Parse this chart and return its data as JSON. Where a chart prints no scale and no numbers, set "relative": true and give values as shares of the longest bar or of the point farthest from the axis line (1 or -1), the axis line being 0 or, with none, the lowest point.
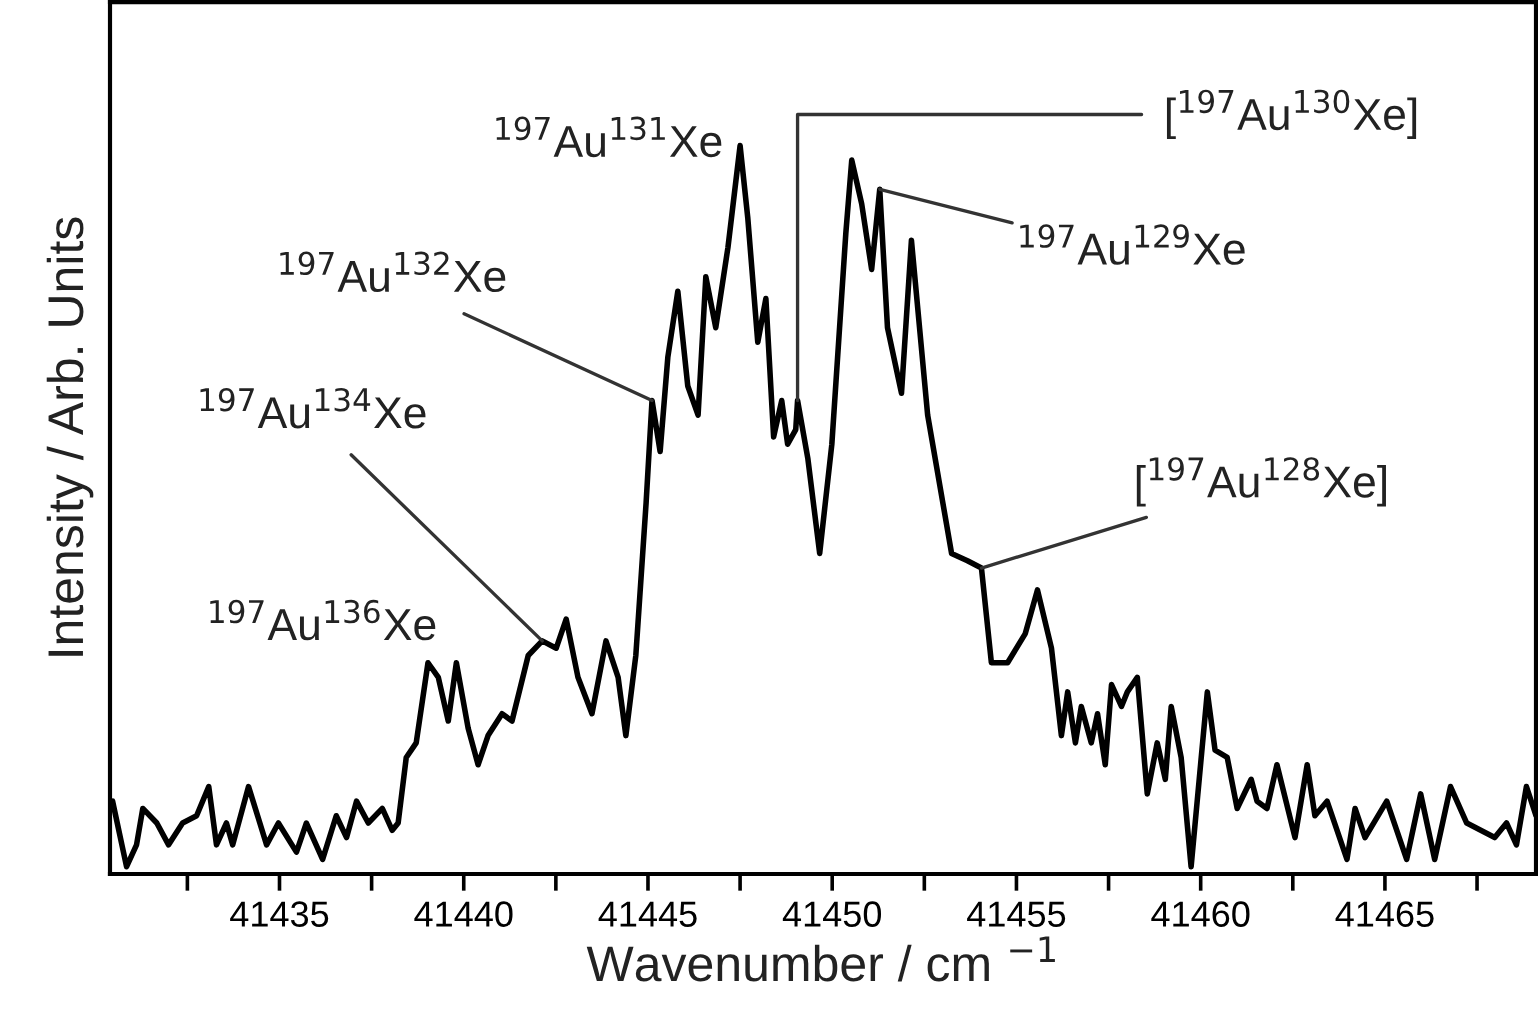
{
  "chart_data": {
    "type": "line",
    "relative": true,
    "xlabel": "Wavenumber / cm $^{−1}$",
    "ylabel": "Intensity / Arb. Units",
    "xlim": [
      41430.4,
      41469.1
    ],
    "xticks": [
      {
        "value": 41432.5,
        "label": null
      },
      41435,
      {
        "value": 41437.5,
        "label": null
      },
      41440,
      {
        "value": 41442.5,
        "label": null
      },
      41445,
      {
        "value": 41447.5,
        "label": null
      },
      41450,
      {
        "value": 41452.5,
        "label": null
      },
      41455,
      {
        "value": 41457.5,
        "label": null
      },
      41460,
      {
        "value": 41462.5,
        "label": null
      },
      41465,
      {
        "value": 41467.5,
        "label": null
      }
    ],
    "tick_labels": "x",
    "grid": false,
    "legend": false,
    "marker": "none",
    "line_style": "solid",
    "series": [
      {
        "color": "#000000",
        "x": [
          41430.47,
          41430.85,
          41431.12,
          41431.29,
          41431.67,
          41431.99,
          41432.37,
          41432.75,
          41433.08,
          41433.29,
          41433.56,
          41433.73,
          41434.16,
          41434.65,
          41434.97,
          41435.46,
          41435.73,
          41436.17,
          41436.54,
          41436.82,
          41437.09,
          41437.41,
          41437.79,
          41438.06,
          41438.22,
          41438.44,
          41438.71,
          41439.03,
          41439.31,
          41439.58,
          41439.8,
          41440.12,
          41440.39,
          41440.66,
          41441.04,
          41441.31,
          41441.75,
          41442.13,
          41442.51,
          41442.78,
          41443.1,
          41443.48,
          41443.86,
          41444.19,
          41444.4,
          41444.67,
          41444.95,
          41445.11,
          41445.33,
          41445.54,
          41445.81,
          41446.08,
          41446.36,
          41446.57,
          41446.84,
          41447.17,
          41447.5,
          41447.71,
          41447.98,
          41448.2,
          41448.41,
          41448.63,
          41448.79,
          41449.01,
          41449.06,
          41449.34,
          41449.66,
          41449.99,
          41450.37,
          41450.53,
          41450.8,
          41451.07,
          41451.29,
          41451.5,
          41451.88,
          41452.15,
          41452.59,
          41453.24,
          41453.67,
          41454.05,
          41454.32,
          41454.76,
          41455.24,
          41455.57,
          41455.95,
          41456.22,
          41456.39,
          41456.6,
          41456.76,
          41457.03,
          41457.2,
          41457.41,
          41457.58,
          41457.85,
          41458.01,
          41458.28,
          41458.55,
          41458.82,
          41459.04,
          41459.2,
          41459.47,
          41459.74,
          41460.18,
          41460.39,
          41460.72,
          41460.99,
          41461.37,
          41461.53,
          41461.8,
          41462.07,
          41462.56,
          41462.89,
          41463.1,
          41463.43,
          41463.97,
          41464.19,
          41464.46,
          41465.05,
          41465.59,
          41465.97,
          41466.35,
          41466.78,
          41467.22,
          41467.98,
          41468.3,
          41468.57,
          41468.84,
          41469.1
        ],
        "values": [
          0.1,
          0.01,
          0.04,
          0.09,
          0.07,
          0.04,
          0.07,
          0.08,
          0.12,
          0.04,
          0.07,
          0.04,
          0.12,
          0.04,
          0.07,
          0.03,
          0.07,
          0.02,
          0.08,
          0.05,
          0.1,
          0.07,
          0.09,
          0.06,
          0.07,
          0.16,
          0.18,
          0.29,
          0.27,
          0.21,
          0.29,
          0.2,
          0.15,
          0.19,
          0.22,
          0.21,
          0.3,
          0.32,
          0.31,
          0.35,
          0.27,
          0.22,
          0.32,
          0.27,
          0.19,
          0.3,
          0.51,
          0.65,
          0.58,
          0.71,
          0.8,
          0.67,
          0.63,
          0.82,
          0.75,
          0.86,
          1.0,
          0.9,
          0.73,
          0.79,
          0.6,
          0.65,
          0.59,
          0.61,
          0.65,
          0.57,
          0.44,
          0.59,
          0.88,
          0.98,
          0.92,
          0.83,
          0.94,
          0.75,
          0.66,
          0.87,
          0.63,
          0.44,
          0.43,
          0.42,
          0.29,
          0.29,
          0.33,
          0.39,
          0.31,
          0.19,
          0.25,
          0.18,
          0.23,
          0.18,
          0.22,
          0.15,
          0.26,
          0.23,
          0.25,
          0.27,
          0.11,
          0.18,
          0.13,
          0.23,
          0.16,
          0.01,
          0.25,
          0.17,
          0.16,
          0.09,
          0.13,
          0.1,
          0.09,
          0.15,
          0.05,
          0.15,
          0.08,
          0.1,
          0.02,
          0.09,
          0.05,
          0.1,
          0.02,
          0.11,
          0.02,
          0.12,
          0.07,
          0.05,
          0.07,
          0.04,
          0.12,
          0.08
        ]
      }
    ],
    "annotations": [
      {
        "text": "$^{197}$Au$^{136}$Xe",
        "x": 41439.03,
        "y": 0.29
      },
      {
        "text": "$^{197}$Au$^{134}$Xe",
        "x": 41442.13,
        "y": 0.32
      },
      {
        "text": "$^{197}$Au$^{132}$Xe",
        "x": 41445.11,
        "y": 0.65
      },
      {
        "text": "$^{197}$Au$^{131}$Xe",
        "x": 41447.5,
        "y": 1.0
      },
      {
        "text": "[$^{197}$Au$^{130}$Xe]",
        "x": 41449.06,
        "y": 0.65
      },
      {
        "text": "$^{197}$Au$^{129}$Xe",
        "x": 41451.29,
        "y": 0.94
      },
      {
        "text": "[$^{197}$Au$^{128}$Xe]",
        "x": 41454.05,
        "y": 0.42
      }
    ]
  }
}
